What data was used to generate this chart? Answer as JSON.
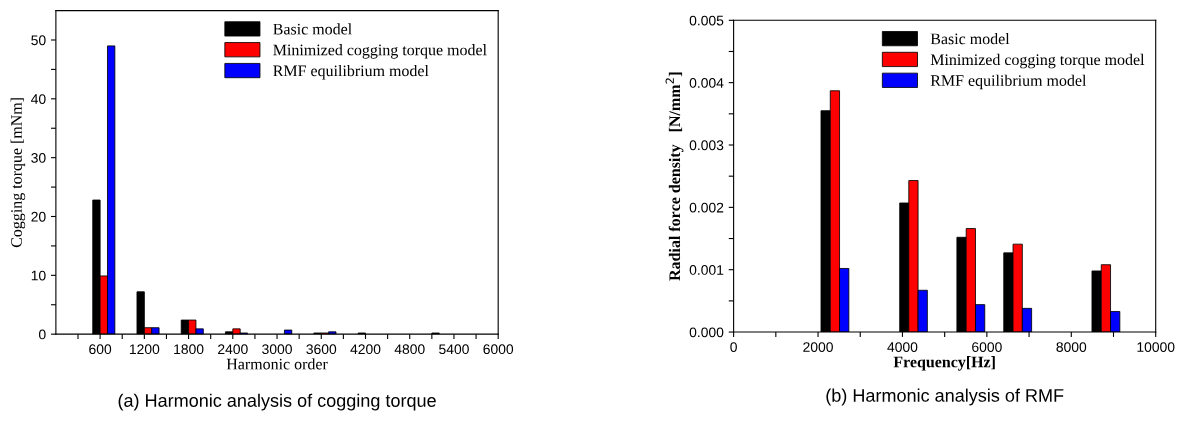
{
  "chart_data": [
    {
      "type": "bar",
      "title": "(a) Harmonic analysis of cogging torque",
      "xlabel": "Harmonic order",
      "ylabel": "Cogging torque [mNm]",
      "legend": "top right",
      "grid": false,
      "xlim": [
        0,
        6000
      ],
      "xticks": [
        {
          "value": 300,
          "label": null
        },
        600,
        {
          "value": 900,
          "label": null
        },
        1200,
        {
          "value": 1500,
          "label": null
        },
        1800,
        {
          "value": 2100,
          "label": null
        },
        2400,
        {
          "value": 2700,
          "label": null
        },
        3000,
        {
          "value": 3300,
          "label": null
        },
        3600,
        {
          "value": 3900,
          "label": null
        },
        4200,
        {
          "value": 4500,
          "label": null
        },
        4800,
        {
          "value": 5100,
          "label": null
        },
        5400,
        {
          "value": 5700,
          "label": null
        },
        6000
      ],
      "ylim": [
        0,
        55
      ],
      "yticks": [
        0,
        {
          "value": 5,
          "label": null
        },
        10,
        {
          "value": 15,
          "label": null
        },
        20,
        {
          "value": 25,
          "label": null
        },
        30,
        {
          "value": 35,
          "label": null
        },
        40,
        {
          "value": 45,
          "label": null
        },
        50
      ],
      "series": [
        {
          "name": "Basic model",
          "color": "#000000",
          "x": [
            550,
            1150,
            1750,
            2350,
            2950,
            3550,
            4150,
            5150
          ],
          "values": [
            22.8,
            7.2,
            2.4,
            0.4,
            null,
            0.2,
            0.2,
            0.2
          ]
        },
        {
          "name": "Minimized cogging torque model",
          "color": "#ff0000",
          "x": [
            650,
            1250,
            1850,
            2450,
            3050,
            3650
          ],
          "values": [
            9.9,
            1.1,
            2.4,
            0.9,
            null,
            0.2
          ]
        },
        {
          "name": "RMF equilibrium model",
          "color": "#0000ff",
          "x": [
            750,
            1350,
            1950,
            2550,
            3150,
            3750
          ],
          "values": [
            49,
            1.1,
            0.9,
            0.2,
            0.7,
            0.4
          ]
        }
      ]
    },
    {
      "type": "bar",
      "title": "(b) Harmonic analysis of RMF",
      "xlabel": "Frequency[Hz]",
      "ylabel": "Radial force density   [N/mm$^{2}$]",
      "legend": "top right",
      "grid": false,
      "xlim": [
        0,
        10000
      ],
      "xticks": [
        0,
        {
          "value": 1000,
          "label": null
        },
        2000,
        {
          "value": 3000,
          "label": null
        },
        4000,
        {
          "value": 5000,
          "label": null
        },
        6000,
        {
          "value": 7000,
          "label": null
        },
        8000,
        {
          "value": 9000,
          "label": null
        },
        10000
      ],
      "ylim": [
        0,
        0.005
      ],
      "yticks": [
        {
          "value": 0,
          "label": "0.000"
        },
        {
          "value": 0.0005,
          "label": null
        },
        {
          "value": 0.001,
          "label": "0.001"
        },
        {
          "value": 0.0015,
          "label": null
        },
        {
          "value": 0.002,
          "label": "0.002"
        },
        {
          "value": 0.0025,
          "label": null
        },
        {
          "value": 0.003,
          "label": "0.003"
        },
        {
          "value": 0.0035,
          "label": null
        },
        {
          "value": 0.004,
          "label": "0.004"
        },
        {
          "value": 0.0045,
          "label": null
        },
        {
          "value": 0.005,
          "label": "0.005"
        }
      ],
      "series": [
        {
          "name": "Basic model",
          "color": "#000000",
          "x": [
            2180,
            4045,
            5400,
            6510,
            8600
          ],
          "values": [
            0.00355,
            0.00207,
            0.00152,
            0.00127,
            0.00098
          ]
        },
        {
          "name": "Minimized cogging torque model",
          "color": "#ff0000",
          "x": [
            2400,
            4260,
            5620,
            6730,
            8820
          ],
          "values": [
            0.00387,
            0.00243,
            0.00166,
            0.00141,
            0.00108
          ]
        },
        {
          "name": "RMF equilibrium model",
          "color": "#0000ff",
          "x": [
            2620,
            4480,
            5840,
            6950,
            9040
          ],
          "values": [
            0.00102,
            0.00067,
            0.00044,
            0.00038,
            0.00033
          ]
        }
      ]
    }
  ]
}
